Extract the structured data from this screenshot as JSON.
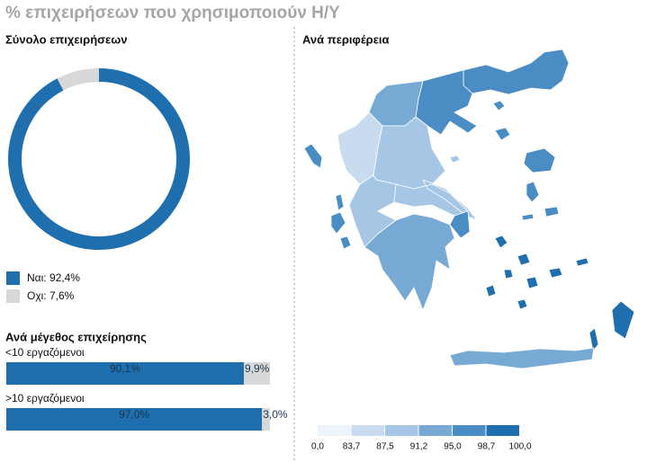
{
  "header": {
    "title": "% επιχειρήσεων που χρησιμοποιούν Η/Υ"
  },
  "chart_data": [
    {
      "type": "pie",
      "title": "Σύνολο επιχειρήσεων",
      "categories": [
        "Ναι",
        "Οχι"
      ],
      "values": [
        92.4,
        7.6
      ],
      "colors": [
        "#1f6fae",
        "#d8d8d8"
      ],
      "legend_labels": [
        "Ναι: 92,4%",
        "Οχι: 7,6%"
      ],
      "hole": true
    },
    {
      "type": "stacked-hbar",
      "title": "Ανά μέγεθος επιχείρησης",
      "categories": [
        "<10 εργαζόμενοι",
        ">10 εργαζόμενοι"
      ],
      "xlim": [
        0,
        100
      ],
      "series": [
        {
          "color": "#1f6fae",
          "values": [
            90.1,
            97.0
          ],
          "value_labels": [
            "90,1%",
            "97,0%"
          ]
        },
        {
          "color": "#d8d8d8",
          "values": [
            9.9,
            3.0
          ],
          "value_labels": [
            "9,9%",
            "3,0%"
          ]
        }
      ]
    },
    {
      "type": "map",
      "title": "Ανά περιφέρεια",
      "values": [
        95.5,
        96.0,
        94.0,
        86.0,
        90.0,
        97.0,
        88.0,
        91.0,
        95.5,
        93.0,
        97.0,
        99.5,
        95.0
      ],
      "scale_ticks": [
        {
          "value": 0.0,
          "label": "0,0"
        },
        {
          "value": 83.7,
          "label": "83,7"
        },
        {
          "value": 87.5,
          "label": "87,5"
        },
        {
          "value": 91.2,
          "label": "91,2"
        },
        {
          "value": 95.0,
          "label": "95,0"
        },
        {
          "value": 98.7,
          "label": "98,7"
        },
        {
          "value": 100.0,
          "label": "100,0"
        }
      ],
      "colors": [
        "#eef4fb",
        "#c9dcef",
        "#a5c6e5",
        "#77a9d5",
        "#4a8cc4",
        "#1f6fae"
      ]
    }
  ]
}
